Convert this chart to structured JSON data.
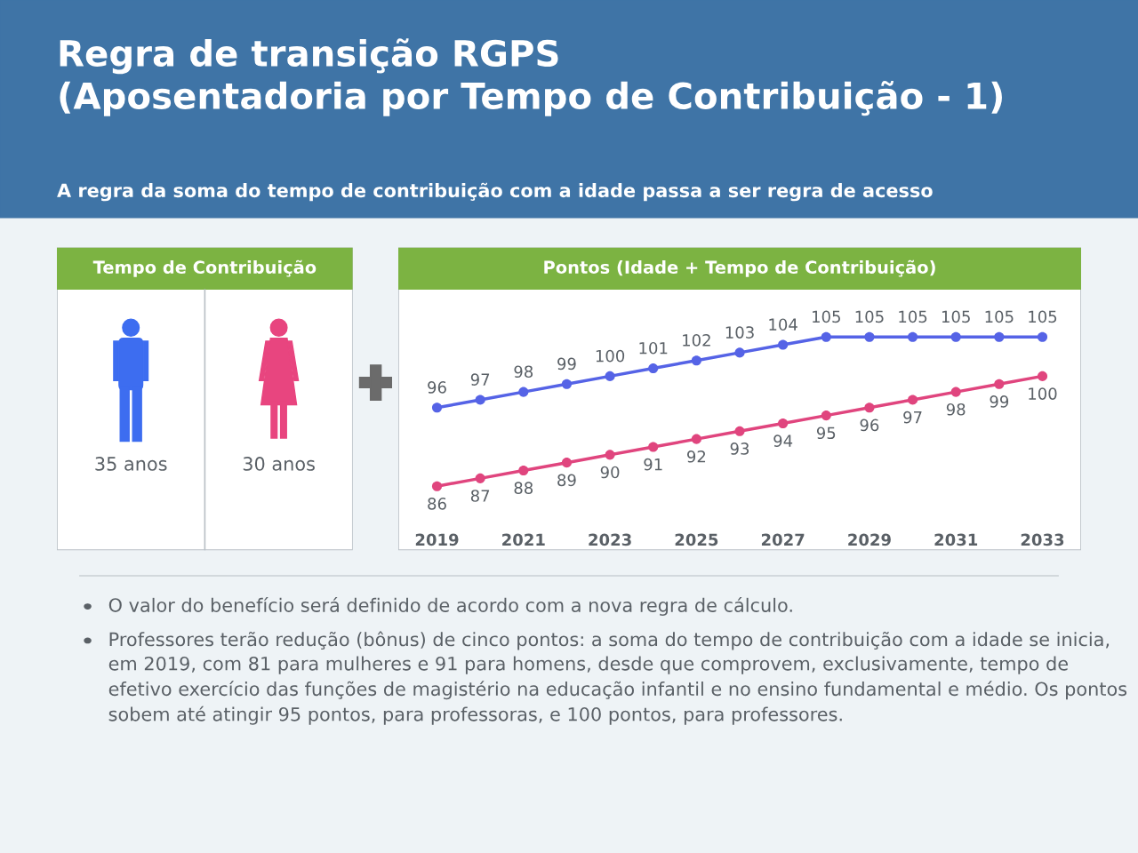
{
  "chart_data": [
    {
      "type": "other",
      "title": "Regra de transição RGPS\n(Aposentadoria por Tempo de Contribuição - 1)",
      "subtitle": "A regra da soma do tempo de contribuição com a idade passa a ser regra de acesso"
    },
    {
      "type": "other",
      "title": "Tempo de Contribuição",
      "annotations": [
        "35 anos",
        "30 anos"
      ]
    },
    {
      "type": "line",
      "title": "Pontos (Idade + Tempo de Contribuição)",
      "categories": [
        "2019",
        null,
        "2021",
        null,
        "2023",
        null,
        "2025",
        null,
        "2027",
        null,
        "2029",
        null,
        "2031",
        null,
        "2033"
      ],
      "series": [
        {
          "color": "#5563e6",
          "values": [
            96,
            97,
            98,
            99,
            100,
            101,
            102,
            103,
            104,
            105,
            105,
            105,
            105,
            105,
            105
          ]
        },
        {
          "color": "#e0457e",
          "values": [
            86,
            87,
            88,
            89,
            90,
            91,
            92,
            93,
            94,
            95,
            96,
            97,
            98,
            99,
            100
          ]
        }
      ],
      "data_labels": true,
      "marker": "circle",
      "line_style": "solid"
    },
    {
      "type": "other",
      "annotations": [
        "O valor do benefício será definido de acordo com a nova regra de cálculo.",
        "Professores terão redução (bônus) de cinco pontos: a soma do tempo de contribuição com a idade se inicia, em 2019, com 81 para mulheres e 91 para homens, desde que comprovem, exclusivamente, tempo de efetivo exercício das funções de magistério na educação infantil e no ensino fundamental e médio. Os pontos sobem até atingir 95 pontos, para professoras, e 100 pontos, para professores."
      ]
    }
  ]
}
